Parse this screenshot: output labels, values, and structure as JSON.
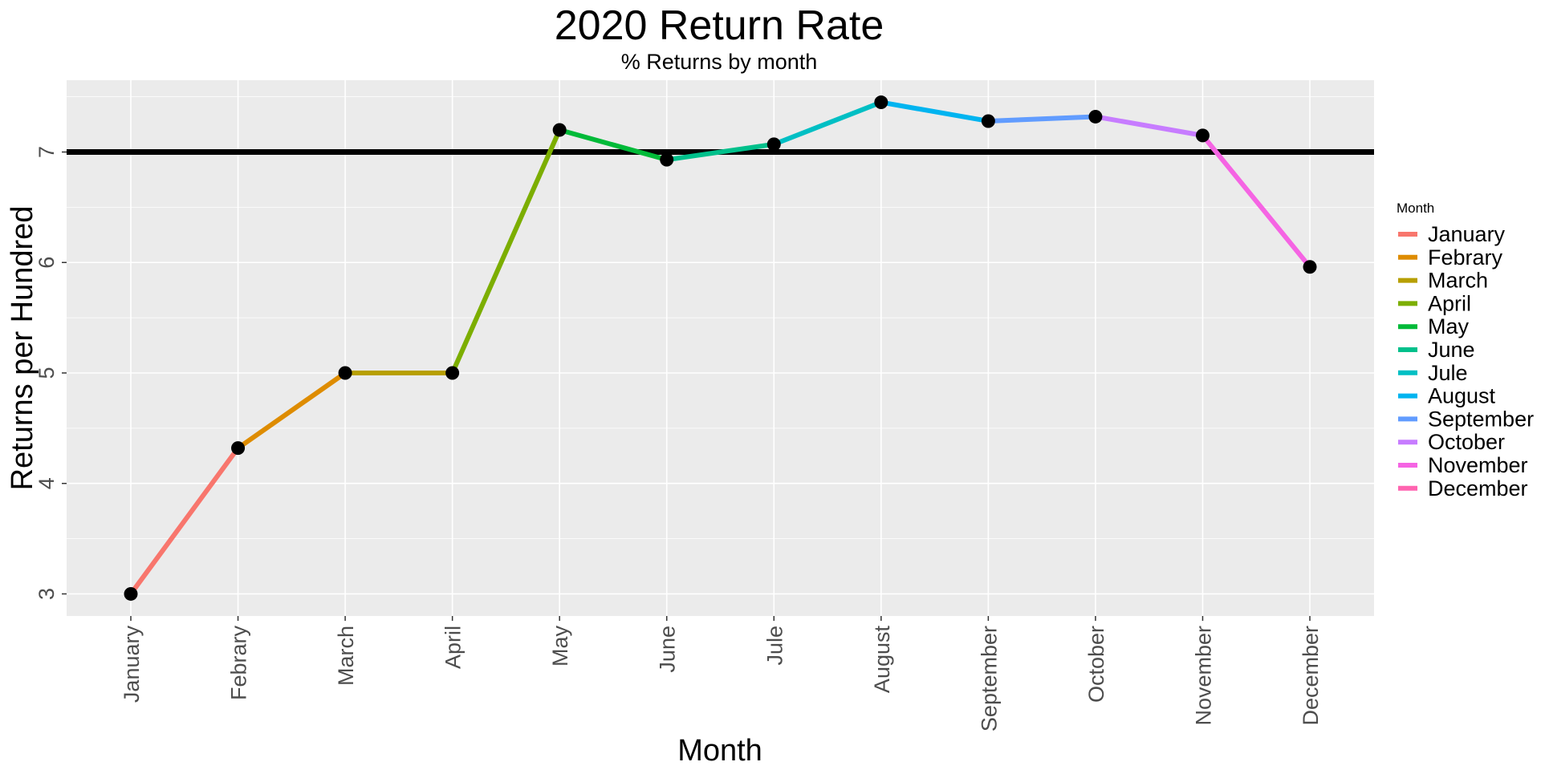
{
  "chart_data": {
    "type": "line",
    "title": "2020 Return Rate",
    "subtitle": "% Returns by month",
    "xlabel": "Month",
    "ylabel": "Returns per Hundred",
    "categories": [
      "January",
      "Febrary",
      "March",
      "April",
      "May",
      "June",
      "Jule",
      "August",
      "September",
      "October",
      "November",
      "December"
    ],
    "values": [
      3.0,
      4.32,
      5.0,
      5.0,
      7.2,
      6.93,
      7.07,
      7.45,
      7.28,
      7.32,
      7.15,
      5.96
    ],
    "series_colors": [
      "#F8766D",
      "#DE8C00",
      "#B79F00",
      "#7CAE00",
      "#00BA38",
      "#00C08B",
      "#00BFC4",
      "#00B4F0",
      "#619CFF",
      "#C77CFF",
      "#F564E3",
      "#FF64B0"
    ],
    "reference_line": {
      "y": 7.0,
      "color": "#000000"
    },
    "ylim": [
      2.8,
      7.65
    ],
    "yticks": [
      3,
      4,
      5,
      6,
      7
    ],
    "grid": true,
    "legend": {
      "title": "Month",
      "position": "right",
      "items": [
        "January",
        "Febrary",
        "March",
        "April",
        "May",
        "June",
        "Jule",
        "August",
        "September",
        "October",
        "November",
        "December"
      ]
    },
    "point_color": "#000000",
    "panel_background": "#EBEBEB",
    "grid_color": "#FFFFFF"
  }
}
